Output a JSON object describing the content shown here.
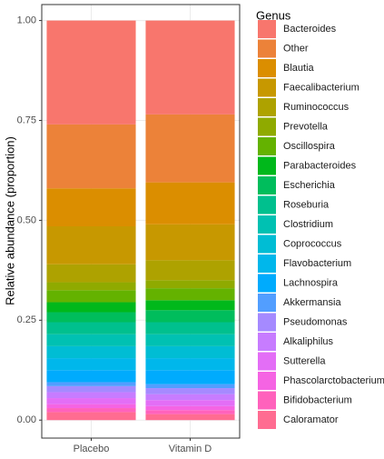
{
  "chart_data": {
    "type": "stacked_bar",
    "y_label": "Relative abundance (proportion)",
    "legend_title": "Genus",
    "categories": [
      "Placebo",
      "Vitamin D"
    ],
    "ylim": [
      -0.045,
      1.04
    ],
    "yticks": [
      {
        "value": 0,
        "label": "0.00"
      },
      {
        "value": 0.25,
        "label": "0.25"
      },
      {
        "value": 0.5,
        "label": "0.50"
      },
      {
        "value": 0.75,
        "label": "0.75"
      },
      {
        "value": 1,
        "label": "1.00"
      }
    ],
    "grid": true,
    "legend_position": "right",
    "series": [
      {
        "name": "Bacteroides",
        "color": "#F8766D",
        "values": [
          0.26,
          0.235
        ]
      },
      {
        "name": "Other",
        "color": "#EC8239",
        "values": [
          0.16,
          0.17
        ]
      },
      {
        "name": "Blautia",
        "color": "#DB8E00",
        "values": [
          0.095,
          0.105
        ]
      },
      {
        "name": "Faecalibacterium",
        "color": "#C79800",
        "values": [
          0.095,
          0.09
        ]
      },
      {
        "name": "Ruminococcus",
        "color": "#AEA200",
        "values": [
          0.045,
          0.05
        ]
      },
      {
        "name": "Prevotella",
        "color": "#8FAA00",
        "values": [
          0.02,
          0.02
        ]
      },
      {
        "name": "Oscillospira",
        "color": "#64B200",
        "values": [
          0.03,
          0.03
        ]
      },
      {
        "name": "Parabacteroides",
        "color": "#00B81B",
        "values": [
          0.025,
          0.025
        ]
      },
      {
        "name": "Escherichia",
        "color": "#00BD5C",
        "values": [
          0.025,
          0.03
        ]
      },
      {
        "name": "Roseburia",
        "color": "#00C08E",
        "values": [
          0.03,
          0.03
        ]
      },
      {
        "name": "Clostridium",
        "color": "#00C1B2",
        "values": [
          0.03,
          0.03
        ]
      },
      {
        "name": "Coprococcus",
        "color": "#00BDD4",
        "values": [
          0.03,
          0.03
        ]
      },
      {
        "name": "Flavobacterium",
        "color": "#00B7EB",
        "values": [
          0.03,
          0.03
        ]
      },
      {
        "name": "Lachnospira",
        "color": "#00ABFD",
        "values": [
          0.03,
          0.035
        ]
      },
      {
        "name": "Akkermansia",
        "color": "#529EFF",
        "values": [
          0.01,
          0.01
        ]
      },
      {
        "name": "Pseudomonas",
        "color": "#A58AFF",
        "values": [
          0.015,
          0.015
        ]
      },
      {
        "name": "Alkaliphilus",
        "color": "#C77CFF",
        "values": [
          0.015,
          0.015
        ]
      },
      {
        "name": "Sutterella",
        "color": "#E36EF6",
        "values": [
          0.015,
          0.015
        ]
      },
      {
        "name": "Phascolarctobacterium",
        "color": "#F564E3",
        "values": [
          0.01,
          0.01
        ]
      },
      {
        "name": "Bifidobacterium",
        "color": "#FF62BC",
        "values": [
          0.01,
          0.01
        ]
      },
      {
        "name": "Caloramator",
        "color": "#FF6C91",
        "values": [
          0.02,
          0.015
        ]
      }
    ]
  }
}
